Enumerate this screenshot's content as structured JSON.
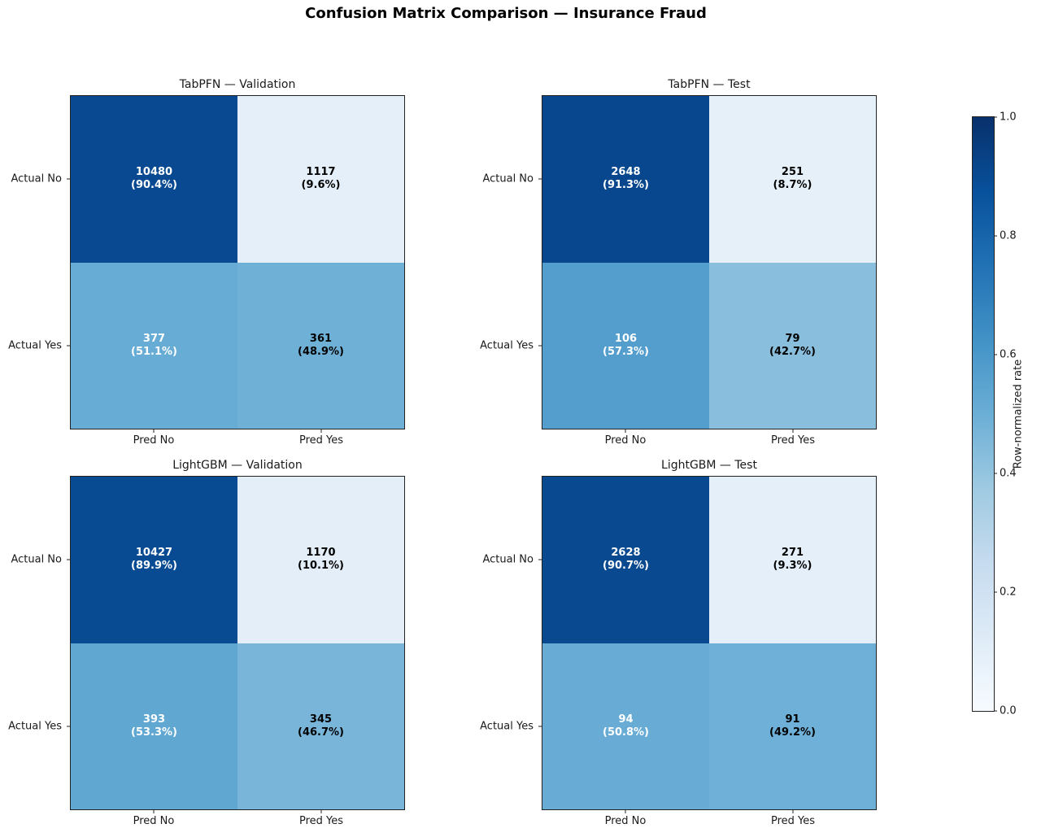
{
  "chart_data": {
    "type": "heatmap",
    "title": "Confusion Matrix Comparison — Insurance Fraud",
    "colormap": "Blues",
    "colormap_stops": [
      "#f7fbff",
      "#deebf7",
      "#c6dbef",
      "#9ecae1",
      "#6baed6",
      "#4292c6",
      "#2171b5",
      "#08519c",
      "#08306b"
    ],
    "value_range": [
      0,
      1
    ],
    "text_color_threshold": 0.5,
    "cell_text_color_dark_bg": "#ffffff",
    "cell_text_color_light_bg": "#000000",
    "x_tick_labels": [
      "Pred No",
      "Pred Yes"
    ],
    "y_tick_labels": [
      "Actual No",
      "Actual Yes"
    ],
    "colorbar_label": "Row-normalized rate",
    "colorbar_tick_labels": [
      "1.0",
      "0.8",
      "0.6",
      "0.4",
      "0.2",
      "0.0"
    ],
    "panels": [
      {
        "title": "TabPFN — Validation",
        "counts": [
          [
            10480,
            1117
          ],
          [
            377,
            361
          ]
        ],
        "row_rates": [
          [
            0.904,
            0.096
          ],
          [
            0.511,
            0.489
          ]
        ],
        "cells": [
          {
            "count": "10480",
            "pct": "(90.4%)",
            "rate": 0.904
          },
          {
            "count": "1117",
            "pct": "(9.6%)",
            "rate": 0.096
          },
          {
            "count": "377",
            "pct": "(51.1%)",
            "rate": 0.511
          },
          {
            "count": "361",
            "pct": "(48.9%)",
            "rate": 0.489
          }
        ]
      },
      {
        "title": "TabPFN — Test",
        "counts": [
          [
            2648,
            251
          ],
          [
            106,
            79
          ]
        ],
        "row_rates": [
          [
            0.913,
            0.087
          ],
          [
            0.573,
            0.427
          ]
        ],
        "cells": [
          {
            "count": "2648",
            "pct": "(91.3%)",
            "rate": 0.913
          },
          {
            "count": "251",
            "pct": "(8.7%)",
            "rate": 0.087
          },
          {
            "count": "106",
            "pct": "(57.3%)",
            "rate": 0.573
          },
          {
            "count": "79",
            "pct": "(42.7%)",
            "rate": 0.427
          }
        ]
      },
      {
        "title": "LightGBM — Validation",
        "counts": [
          [
            10427,
            1170
          ],
          [
            393,
            345
          ]
        ],
        "row_rates": [
          [
            0.899,
            0.101
          ],
          [
            0.533,
            0.467
          ]
        ],
        "cells": [
          {
            "count": "10427",
            "pct": "(89.9%)",
            "rate": 0.899
          },
          {
            "count": "1170",
            "pct": "(10.1%)",
            "rate": 0.101
          },
          {
            "count": "393",
            "pct": "(53.3%)",
            "rate": 0.533
          },
          {
            "count": "345",
            "pct": "(46.7%)",
            "rate": 0.467
          }
        ]
      },
      {
        "title": "LightGBM — Test",
        "counts": [
          [
            2628,
            271
          ],
          [
            94,
            91
          ]
        ],
        "row_rates": [
          [
            0.907,
            0.093
          ],
          [
            0.508,
            0.492
          ]
        ],
        "cells": [
          {
            "count": "2628",
            "pct": "(90.7%)",
            "rate": 0.907
          },
          {
            "count": "271",
            "pct": "(9.3%)",
            "rate": 0.093
          },
          {
            "count": "94",
            "pct": "(50.8%)",
            "rate": 0.508
          },
          {
            "count": "91",
            "pct": "(49.2%)",
            "rate": 0.492
          }
        ]
      }
    ]
  }
}
